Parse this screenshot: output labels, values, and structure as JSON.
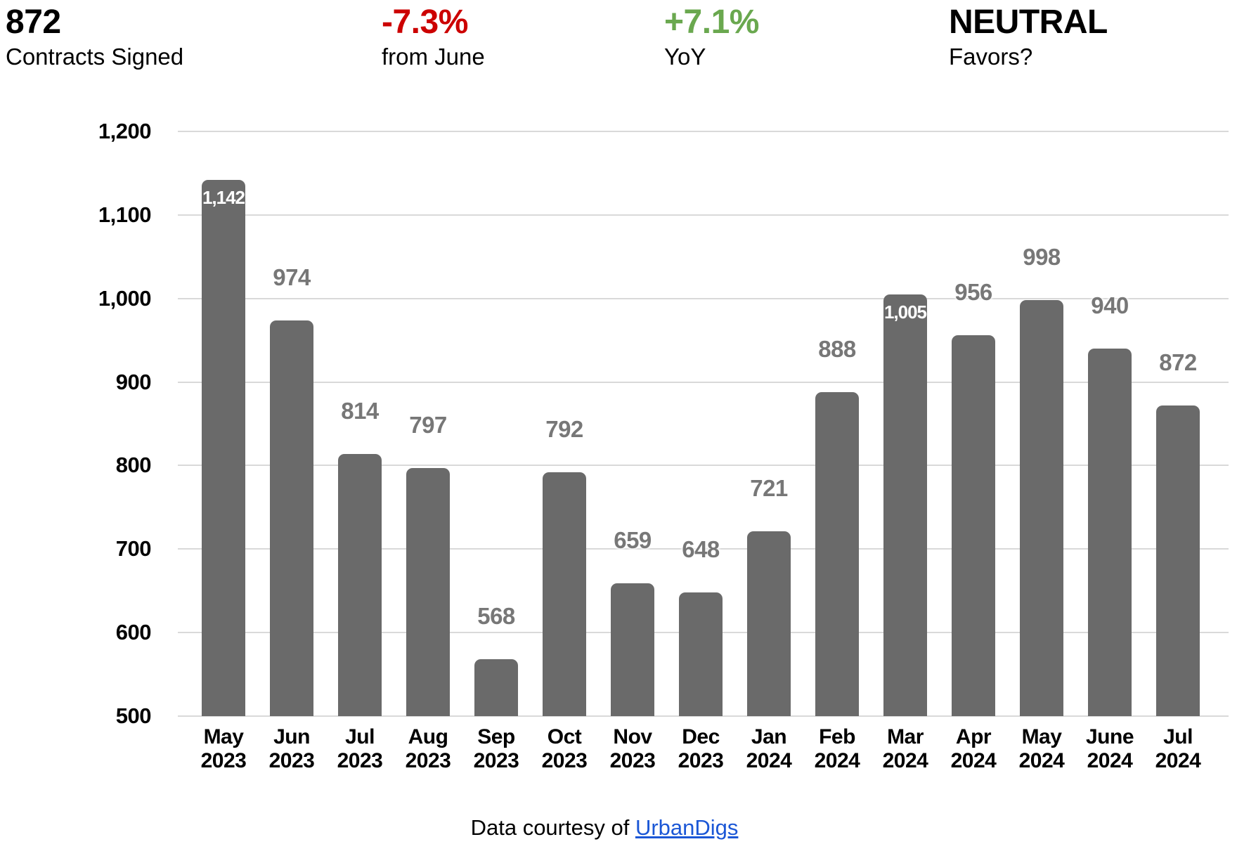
{
  "header": {
    "stats": [
      {
        "value": "872",
        "label": "Contracts Signed",
        "value_color": "#000000"
      },
      {
        "value": "-7.3%",
        "label": "from June",
        "value_color": "#cc0000"
      },
      {
        "value": "+7.1%",
        "label": "YoY",
        "value_color": "#6aa84f"
      },
      {
        "value": "NEUTRAL",
        "label": "Favors?",
        "value_color": "#000000"
      }
    ]
  },
  "chart_data": {
    "type": "bar",
    "title": "",
    "xlabel": "",
    "ylabel": "",
    "categories": [
      "May 2023",
      "Jun 2023",
      "Jul 2023",
      "Aug 2023",
      "Sep 2023",
      "Oct 2023",
      "Nov 2023",
      "Dec 2023",
      "Jan 2024",
      "Feb 2024",
      "Mar 2024",
      "Apr 2024",
      "May 2024",
      "June 2024",
      "Jul 2024"
    ],
    "values": [
      1142,
      974,
      814,
      797,
      568,
      792,
      659,
      648,
      721,
      888,
      1005,
      956,
      998,
      940,
      872
    ],
    "bar_labels": [
      "1,142",
      "974",
      "814",
      "797",
      "568",
      "792",
      "659",
      "648",
      "721",
      "888",
      "1,005",
      "956",
      "998",
      "940",
      "872"
    ],
    "label_placement": [
      "inside",
      "above",
      "above",
      "above",
      "above",
      "above",
      "above",
      "above",
      "above",
      "above",
      "inside",
      "above",
      "above",
      "above",
      "above"
    ],
    "ylim": [
      500,
      1200
    ],
    "ytick_step": 100,
    "ytick_labels": [
      "500",
      "600",
      "700",
      "800",
      "900",
      "1,000",
      "1,100",
      "1,200"
    ],
    "grid": true,
    "legend": "none",
    "bar_color": "#6a6a6a",
    "label_color_above": "#777777",
    "label_color_inside": "#ffffff",
    "gridline_color": "#d9d9d9",
    "axis_text_color": "#000000"
  },
  "footer": {
    "text": "Data courtesy of",
    "link_text": "UrbanDigs",
    "link_color": "#1b57d6"
  }
}
